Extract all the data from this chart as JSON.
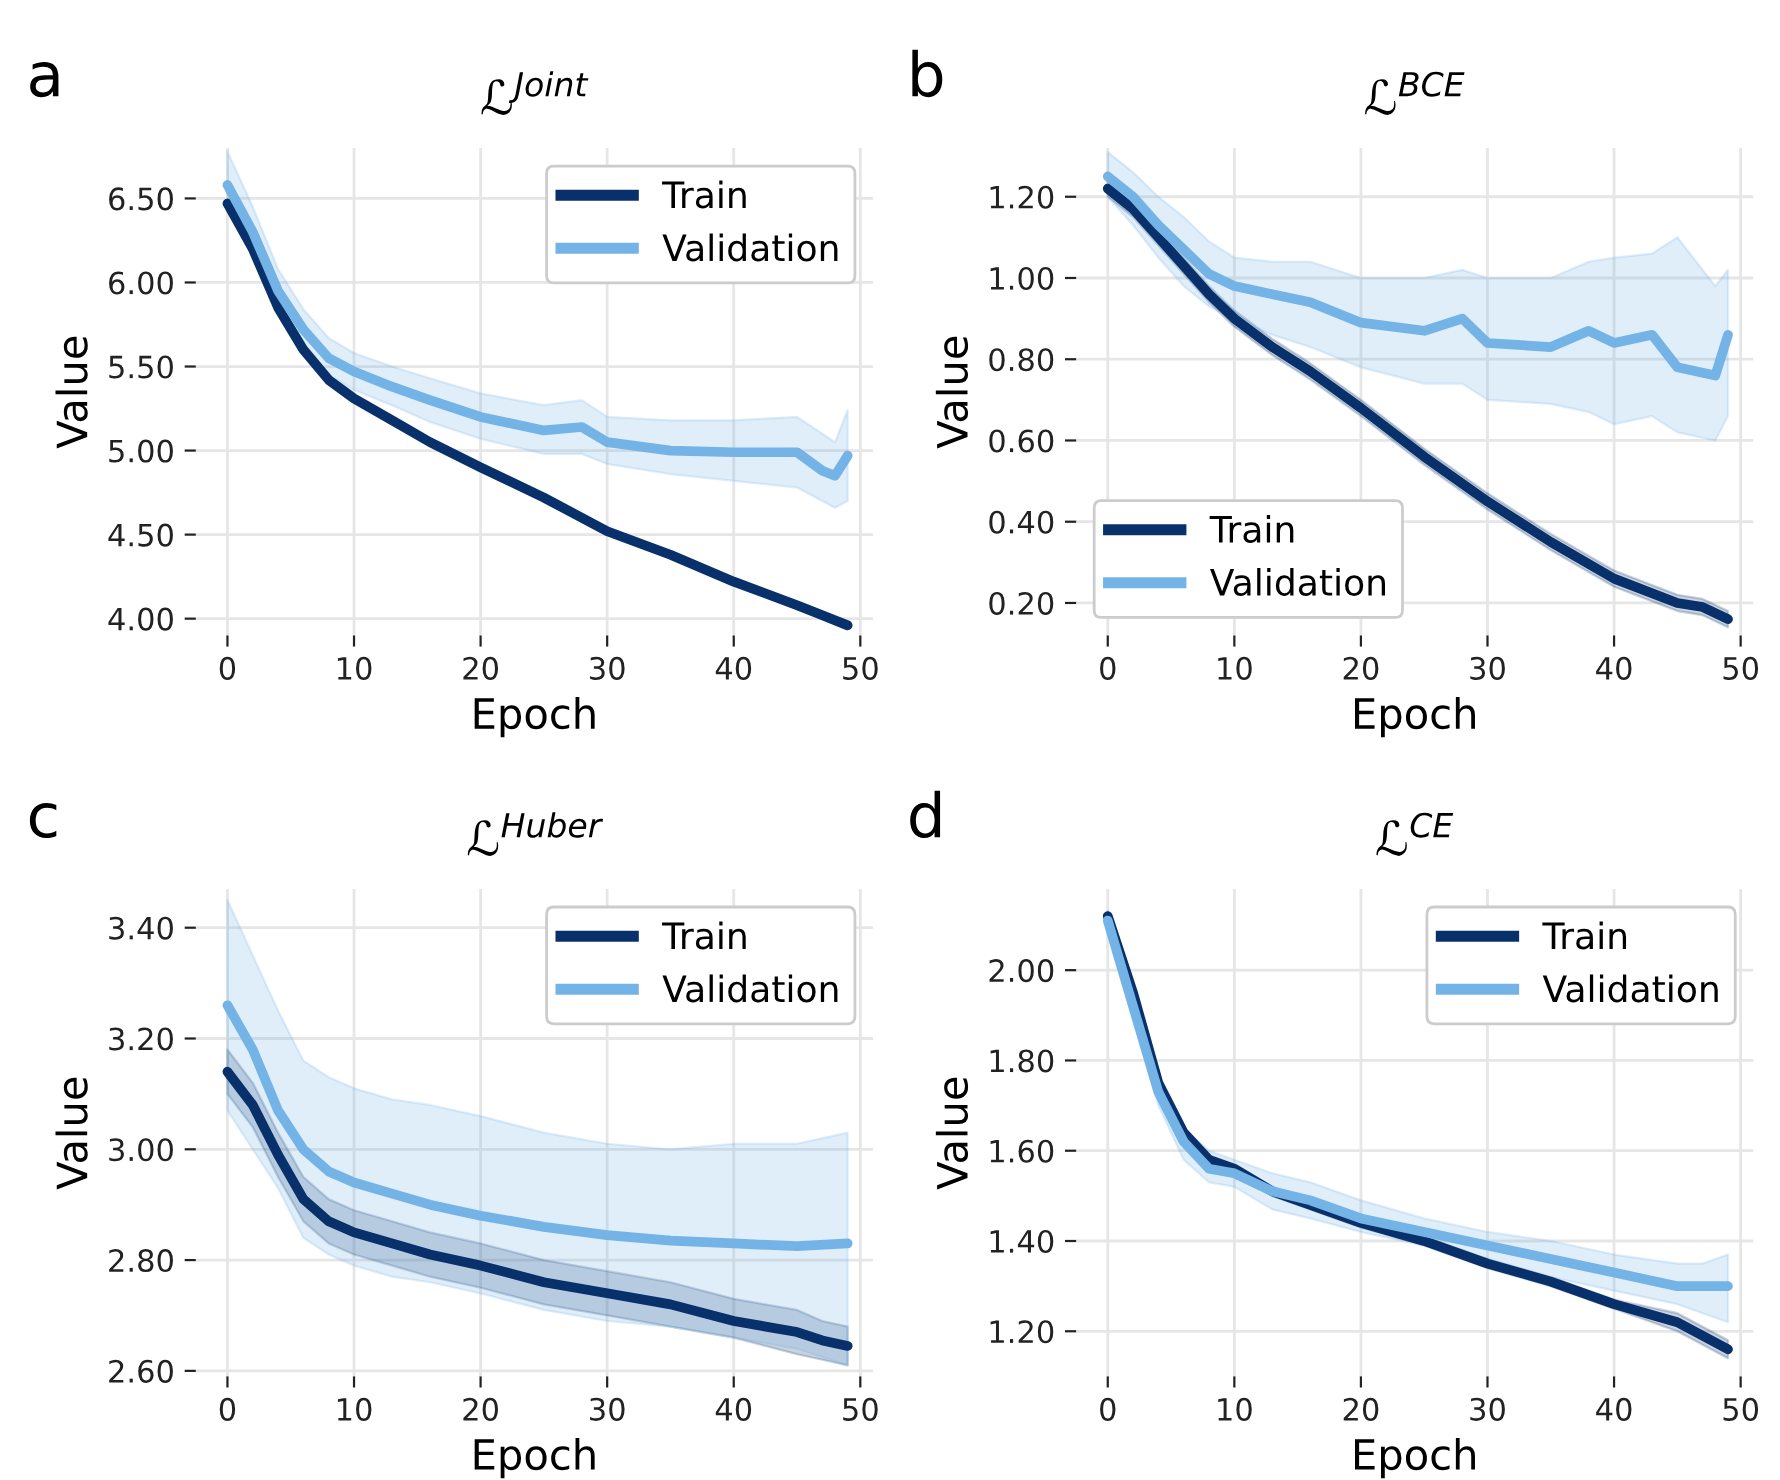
{
  "chart_data": [
    {
      "type": "line",
      "title": "ℒ$^{Joint}$",
      "xlabel": "Epoch",
      "ylabel": "Value",
      "annotations": [
        "a"
      ],
      "xlim": [
        -2.5,
        51
      ],
      "ylim": [
        3.9,
        6.8
      ],
      "xticks": [
        0,
        10,
        20,
        30,
        40,
        50
      ],
      "yticks": [
        {
          "value": 4,
          "label": "4.00"
        },
        {
          "value": 4.5,
          "label": "4.50"
        },
        {
          "value": 5,
          "label": "5.00"
        },
        {
          "value": 5.5,
          "label": "5.50"
        },
        {
          "value": 6,
          "label": "6.00"
        },
        {
          "value": 6.5,
          "label": "6.50"
        }
      ],
      "grid": true,
      "legend": "top right",
      "series": [
        {
          "name": "Train",
          "color": "#08306b",
          "x": [
            0,
            2,
            4,
            6,
            8,
            10,
            13,
            16,
            20,
            25,
            30,
            35,
            40,
            45,
            47,
            49
          ],
          "values": [
            6.47,
            6.2,
            5.85,
            5.6,
            5.42,
            5.31,
            5.18,
            5.05,
            4.9,
            4.72,
            4.52,
            4.38,
            4.22,
            4.08,
            4.02,
            3.96
          ]
        },
        {
          "name": "Validation",
          "color": "#74b3e6",
          "x": [
            0,
            2,
            4,
            6,
            8,
            10,
            13,
            16,
            20,
            25,
            28,
            30,
            35,
            40,
            45,
            47,
            48,
            49
          ],
          "values": [
            6.58,
            6.3,
            5.95,
            5.72,
            5.55,
            5.47,
            5.38,
            5.3,
            5.2,
            5.12,
            5.14,
            5.05,
            5.0,
            4.99,
            4.99,
            4.88,
            4.85,
            4.97
          ],
          "lower": [
            6.45,
            6.15,
            5.83,
            5.6,
            5.45,
            5.36,
            5.27,
            5.17,
            5.07,
            4.98,
            4.98,
            4.92,
            4.86,
            4.82,
            4.78,
            4.7,
            4.66,
            4.7
          ],
          "upper": [
            6.78,
            6.45,
            6.08,
            5.84,
            5.67,
            5.58,
            5.5,
            5.43,
            5.34,
            5.27,
            5.3,
            5.2,
            5.18,
            5.18,
            5.2,
            5.1,
            5.05,
            5.24
          ]
        }
      ]
    },
    {
      "type": "line",
      "title": "ℒ$^{BCE}$",
      "xlabel": "Epoch",
      "ylabel": "Value",
      "annotations": [
        "b"
      ],
      "xlim": [
        -2.5,
        51
      ],
      "ylim": [
        0.12,
        1.32
      ],
      "xticks": [
        0,
        10,
        20,
        30,
        40,
        50
      ],
      "yticks": [
        {
          "value": 0.2,
          "label": "0.20"
        },
        {
          "value": 0.4,
          "label": "0.40"
        },
        {
          "value": 0.6,
          "label": "0.60"
        },
        {
          "value": 0.8,
          "label": "0.80"
        },
        {
          "value": 1.0,
          "label": "1.00"
        },
        {
          "value": 1.2,
          "label": "1.20"
        }
      ],
      "grid": true,
      "legend": "bottom left",
      "series": [
        {
          "name": "Train",
          "color": "#08306b",
          "x": [
            0,
            2,
            4,
            6,
            8,
            10,
            13,
            16,
            20,
            25,
            30,
            35,
            40,
            45,
            47,
            49
          ],
          "values": [
            1.22,
            1.17,
            1.1,
            1.03,
            0.96,
            0.9,
            0.83,
            0.77,
            0.68,
            0.56,
            0.45,
            0.35,
            0.26,
            0.2,
            0.19,
            0.16
          ],
          "lower": [
            1.2,
            1.15,
            1.08,
            1.01,
            0.94,
            0.88,
            0.81,
            0.75,
            0.66,
            0.54,
            0.43,
            0.33,
            0.24,
            0.18,
            0.17,
            0.14
          ],
          "upper": [
            1.24,
            1.19,
            1.12,
            1.05,
            0.98,
            0.92,
            0.85,
            0.79,
            0.7,
            0.58,
            0.47,
            0.37,
            0.28,
            0.22,
            0.21,
            0.18
          ]
        },
        {
          "name": "Validation",
          "color": "#74b3e6",
          "x": [
            0,
            2,
            4,
            6,
            8,
            10,
            13,
            16,
            20,
            25,
            28,
            30,
            35,
            38,
            40,
            43,
            45,
            48,
            49
          ],
          "values": [
            1.25,
            1.2,
            1.13,
            1.07,
            1.01,
            0.98,
            0.96,
            0.94,
            0.89,
            0.87,
            0.9,
            0.84,
            0.83,
            0.87,
            0.84,
            0.86,
            0.78,
            0.76,
            0.86
          ],
          "lower": [
            1.2,
            1.13,
            1.05,
            0.98,
            0.93,
            0.9,
            0.86,
            0.83,
            0.78,
            0.74,
            0.74,
            0.7,
            0.69,
            0.67,
            0.64,
            0.66,
            0.62,
            0.6,
            0.66
          ],
          "upper": [
            1.31,
            1.26,
            1.2,
            1.15,
            1.09,
            1.05,
            1.04,
            1.04,
            1.0,
            1.0,
            1.02,
            1.0,
            1.0,
            1.04,
            1.05,
            1.06,
            1.1,
            0.98,
            1.02
          ]
        }
      ]
    },
    {
      "type": "line",
      "title": "ℒ$^{Huber}$",
      "xlabel": "Epoch",
      "ylabel": "Value",
      "annotations": [
        "c"
      ],
      "xlim": [
        -2.5,
        51
      ],
      "ylim": [
        2.59,
        3.47
      ],
      "xticks": [
        0,
        10,
        20,
        30,
        40,
        50
      ],
      "yticks": [
        {
          "value": 2.6,
          "label": "2.60"
        },
        {
          "value": 2.8,
          "label": "2.80"
        },
        {
          "value": 3.0,
          "label": "3.00"
        },
        {
          "value": 3.2,
          "label": "3.20"
        },
        {
          "value": 3.4,
          "label": "3.40"
        }
      ],
      "grid": true,
      "legend": "top right",
      "series": [
        {
          "name": "Train",
          "color": "#08306b",
          "x": [
            0,
            2,
            4,
            6,
            8,
            10,
            13,
            16,
            20,
            25,
            30,
            35,
            40,
            45,
            47,
            49
          ],
          "values": [
            3.14,
            3.08,
            2.99,
            2.91,
            2.87,
            2.85,
            2.83,
            2.81,
            2.79,
            2.76,
            2.74,
            2.72,
            2.69,
            2.67,
            2.655,
            2.645
          ],
          "lower": [
            3.1,
            3.04,
            2.95,
            2.87,
            2.83,
            2.81,
            2.79,
            2.77,
            2.75,
            2.72,
            2.7,
            2.68,
            2.66,
            2.63,
            2.62,
            2.61
          ],
          "upper": [
            3.18,
            3.12,
            3.03,
            2.95,
            2.91,
            2.89,
            2.87,
            2.85,
            2.83,
            2.8,
            2.78,
            2.76,
            2.73,
            2.71,
            2.69,
            2.68
          ]
        },
        {
          "name": "Validation",
          "color": "#74b3e6",
          "x": [
            0,
            2,
            4,
            6,
            8,
            10,
            13,
            16,
            20,
            25,
            30,
            35,
            40,
            45,
            49
          ],
          "values": [
            3.26,
            3.18,
            3.07,
            3.0,
            2.96,
            2.94,
            2.92,
            2.9,
            2.88,
            2.86,
            2.845,
            2.835,
            2.83,
            2.825,
            2.83
          ],
          "lower": [
            3.07,
            3.0,
            2.93,
            2.84,
            2.81,
            2.79,
            2.77,
            2.76,
            2.74,
            2.71,
            2.69,
            2.68,
            2.66,
            2.64,
            2.61
          ],
          "upper": [
            3.45,
            3.35,
            3.25,
            3.16,
            3.13,
            3.11,
            3.09,
            3.08,
            3.06,
            3.03,
            3.01,
            3.0,
            3.01,
            3.01,
            3.03
          ]
        }
      ]
    },
    {
      "type": "line",
      "title": "ℒ$^{CE}$",
      "xlabel": "Epoch",
      "ylabel": "Value",
      "annotations": [
        "d"
      ],
      "xlim": [
        -2.5,
        51
      ],
      "ylim": [
        1.1,
        2.18
      ],
      "xticks": [
        0,
        10,
        20,
        30,
        40,
        50
      ],
      "yticks": [
        {
          "value": 1.2,
          "label": "1.20"
        },
        {
          "value": 1.4,
          "label": "1.40"
        },
        {
          "value": 1.6,
          "label": "1.60"
        },
        {
          "value": 1.8,
          "label": "1.80"
        },
        {
          "value": 2.0,
          "label": "2.00"
        }
      ],
      "grid": true,
      "legend": "top right",
      "series": [
        {
          "name": "Train",
          "color": "#08306b",
          "x": [
            0,
            2,
            4,
            6,
            8,
            10,
            13,
            16,
            20,
            25,
            30,
            35,
            40,
            45,
            47,
            49
          ],
          "values": [
            2.12,
            1.95,
            1.75,
            1.64,
            1.58,
            1.56,
            1.51,
            1.48,
            1.44,
            1.4,
            1.35,
            1.31,
            1.26,
            1.22,
            1.19,
            1.16
          ],
          "lower": [
            2.11,
            1.94,
            1.74,
            1.63,
            1.57,
            1.55,
            1.5,
            1.47,
            1.43,
            1.39,
            1.34,
            1.3,
            1.25,
            1.2,
            1.17,
            1.14
          ],
          "upper": [
            2.13,
            1.96,
            1.76,
            1.65,
            1.59,
            1.57,
            1.52,
            1.49,
            1.45,
            1.41,
            1.36,
            1.32,
            1.27,
            1.24,
            1.21,
            1.18
          ]
        },
        {
          "name": "Validation",
          "color": "#74b3e6",
          "x": [
            0,
            2,
            4,
            6,
            8,
            10,
            13,
            16,
            20,
            25,
            30,
            35,
            40,
            45,
            47,
            49
          ],
          "values": [
            2.11,
            1.92,
            1.73,
            1.62,
            1.56,
            1.55,
            1.51,
            1.49,
            1.45,
            1.42,
            1.39,
            1.36,
            1.33,
            1.3,
            1.3,
            1.3
          ],
          "lower": [
            2.09,
            1.89,
            1.7,
            1.58,
            1.53,
            1.52,
            1.47,
            1.45,
            1.42,
            1.39,
            1.36,
            1.32,
            1.29,
            1.26,
            1.24,
            1.22
          ],
          "upper": [
            2.13,
            1.95,
            1.76,
            1.65,
            1.6,
            1.58,
            1.55,
            1.53,
            1.49,
            1.45,
            1.42,
            1.4,
            1.37,
            1.35,
            1.35,
            1.37
          ]
        }
      ]
    }
  ]
}
